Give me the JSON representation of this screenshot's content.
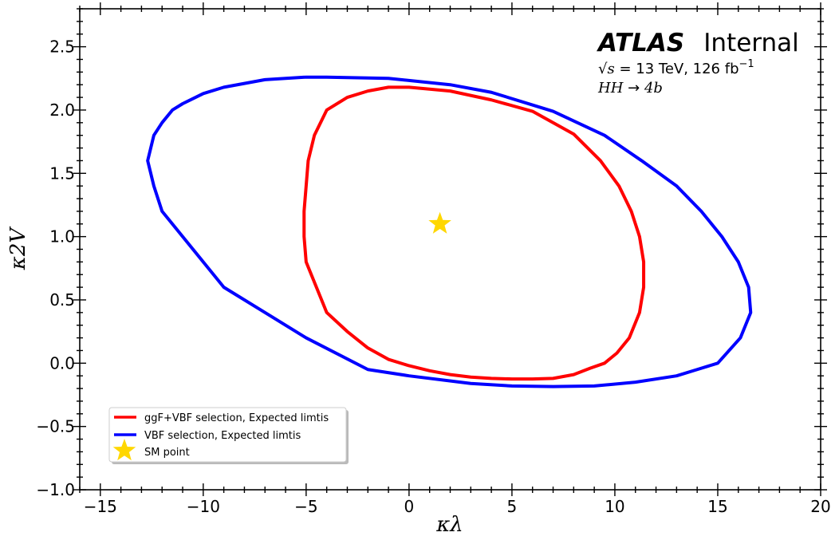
{
  "chart_data": {
    "type": "line",
    "title": "",
    "xlabel": "κλ",
    "ylabel": "κ2V",
    "xlim": [
      -16,
      20
    ],
    "ylim": [
      -1.0,
      2.8
    ],
    "xticks": [
      -15,
      -10,
      -5,
      0,
      5,
      10,
      15,
      20
    ],
    "xtick_labels": [
      "−15",
      "−10",
      "−5",
      "0",
      "5",
      "10",
      "15",
      "20"
    ],
    "yticks": [
      -1.0,
      -0.5,
      0.0,
      0.5,
      1.0,
      1.5,
      2.0,
      2.5
    ],
    "ytick_labels": [
      "−1.0",
      "−0.5",
      "0.0",
      "0.5",
      "1.0",
      "1.5",
      "2.0",
      "2.5"
    ],
    "grid": false,
    "legend_position": "lower-left",
    "annotations": {
      "atlas": "ATLAS",
      "internal": "Internal",
      "sqrt_s": "√s = 13 TeV, 126 fb⁻¹",
      "sqrt_symbol": "√",
      "sqrt_var": "s",
      "energy_text": " = 13 TeV, 126 fb",
      "lumi_exp": "−1",
      "process": "HH → 4b",
      "process_main": "HH",
      "process_arrow": " → ",
      "process_final": "4b"
    },
    "series": [
      {
        "name": "ggF+VBF selection, Expected limtis",
        "color": "#ff0000",
        "closed": true,
        "x": [
          0,
          2,
          4,
          6,
          8,
          9.3,
          10.2,
          10.8,
          11.2,
          11.4,
          11.4,
          11.2,
          10.7,
          10.1,
          9.5,
          8.8,
          8,
          7,
          6,
          5,
          4,
          3,
          2,
          1,
          0,
          -1,
          -2,
          -3,
          -4,
          -4.5,
          -5,
          -5.1,
          -5.1,
          -4.9,
          -4.6,
          -4,
          -3,
          -2,
          -1,
          0
        ],
        "y": [
          2.18,
          2.15,
          2.08,
          1.99,
          1.81,
          1.6,
          1.4,
          1.2,
          1.0,
          0.8,
          0.6,
          0.4,
          0.2,
          0.08,
          0.0,
          -0.04,
          -0.09,
          -0.12,
          -0.125,
          -0.125,
          -0.12,
          -0.11,
          -0.09,
          -0.06,
          -0.02,
          0.03,
          0.12,
          0.25,
          0.4,
          0.6,
          0.8,
          1.0,
          1.2,
          1.6,
          1.8,
          2.0,
          2.1,
          2.15,
          2.18,
          2.18
        ]
      },
      {
        "name": "VBF selection, Expected limtis",
        "color": "#0000ff",
        "closed": true,
        "x": [
          -4,
          -1,
          2,
          4,
          7,
          9.5,
          11.3,
          13,
          14.2,
          15.2,
          16,
          16.5,
          16.6,
          16.1,
          15,
          14,
          13,
          11,
          9,
          7,
          5,
          3,
          0,
          -2,
          -5,
          -7,
          -9,
          -10,
          -11,
          -12,
          -12.4,
          -12.7,
          -12.4,
          -12,
          -11.5,
          -11,
          -10,
          -9,
          -8,
          -7,
          -5,
          -4
        ],
        "y": [
          2.26,
          2.25,
          2.2,
          2.14,
          1.99,
          1.8,
          1.6,
          1.4,
          1.2,
          1.0,
          0.8,
          0.6,
          0.4,
          0.2,
          0.0,
          -0.05,
          -0.1,
          -0.15,
          -0.18,
          -0.185,
          -0.18,
          -0.16,
          -0.1,
          -0.05,
          0.2,
          0.4,
          0.6,
          0.8,
          1.0,
          1.2,
          1.4,
          1.6,
          1.8,
          1.9,
          2.0,
          2.05,
          2.13,
          2.18,
          2.21,
          2.24,
          2.26,
          2.26
        ]
      },
      {
        "name": "SM point",
        "type": "scatter",
        "marker": "star",
        "color": "#ffd700",
        "x": [
          1.5
        ],
        "y": [
          1.1
        ]
      }
    ]
  }
}
